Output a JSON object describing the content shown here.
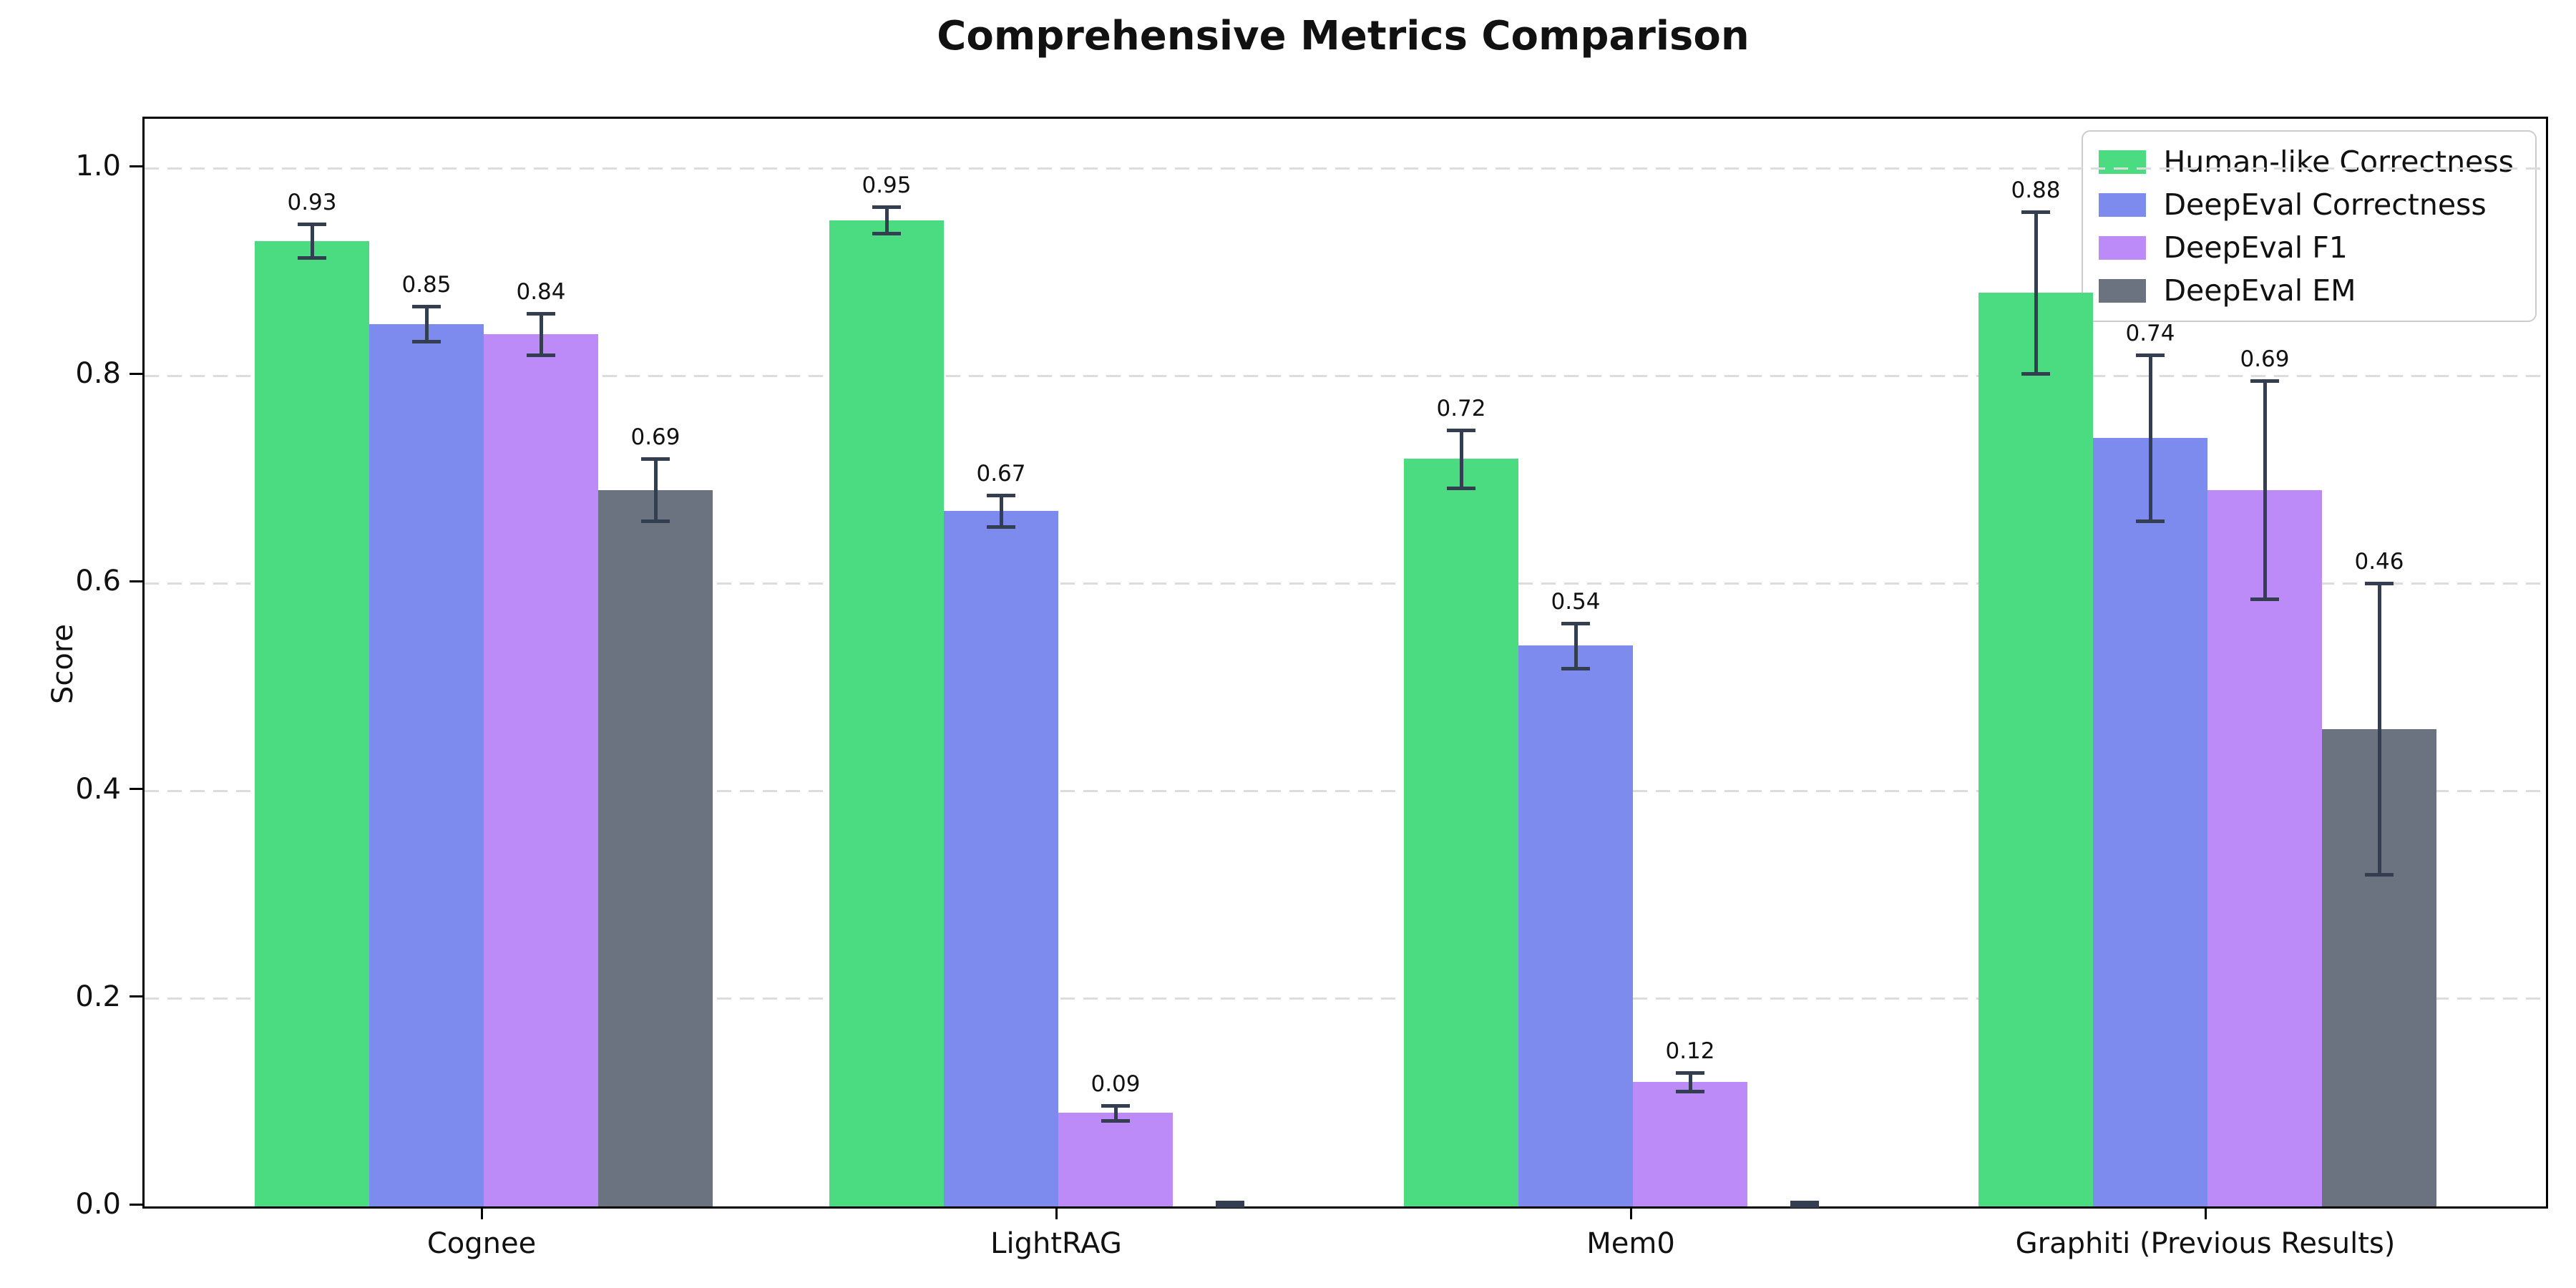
{
  "title": "Comprehensive Metrics Comparison",
  "ylabel": "Score",
  "yticks": [
    {
      "label": "0.0",
      "value": 0.0
    },
    {
      "label": "0.2",
      "value": 0.2
    },
    {
      "label": "0.4",
      "value": 0.4
    },
    {
      "label": "0.6",
      "value": 0.6
    },
    {
      "label": "0.8",
      "value": 0.8
    },
    {
      "label": "1.0",
      "value": 1.0
    }
  ],
  "chart_data": {
    "type": "bar",
    "title": "Comprehensive Metrics Comparison",
    "xlabel": "",
    "ylabel": "Score",
    "ylim": [
      0,
      1.05
    ],
    "grid": "horizontal dashed gridlines at 0.2 intervals",
    "legend_position": "upper right",
    "categories": [
      "Cognee",
      "LightRAG",
      "Mem0",
      "Graphiti (Previous Results)"
    ],
    "series": [
      {
        "name": "Human-like Correctness",
        "color": "#4bdc82",
        "values": [
          0.93,
          0.95,
          0.72,
          0.88
        ],
        "errors": [
          0.016,
          0.013,
          0.028,
          0.078
        ],
        "labels": [
          "0.93",
          "0.95",
          "0.72",
          "0.88"
        ]
      },
      {
        "name": "DeepEval Correctness",
        "color": "#7e8bee",
        "values": [
          0.85,
          0.67,
          0.54,
          0.74
        ],
        "errors": [
          0.017,
          0.015,
          0.022,
          0.08
        ],
        "labels": [
          "0.85",
          "0.67",
          "0.54",
          "0.74"
        ]
      },
      {
        "name": "DeepEval F1",
        "color": "#bc8bf8",
        "values": [
          0.84,
          0.09,
          0.12,
          0.69
        ],
        "errors": [
          0.02,
          0.007,
          0.009,
          0.105
        ],
        "labels": [
          "0.84",
          "0.09",
          "0.12",
          "0.69"
        ]
      },
      {
        "name": "DeepEval EM",
        "color": "#6b7280",
        "values": [
          0.69,
          0.0,
          0.0,
          0.46
        ],
        "errors": [
          0.03,
          0.004,
          0.004,
          0.14
        ],
        "labels": [
          "0.69",
          "",
          "",
          "0.46"
        ]
      }
    ],
    "error_bar_color": "#333e50",
    "gridline_color": "#dcdcdc"
  }
}
